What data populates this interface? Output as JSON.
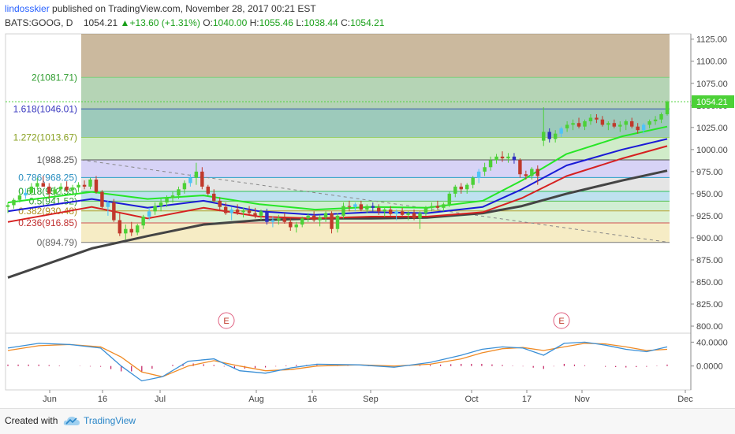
{
  "header": {
    "user": "lindosskier",
    "published_text": "published on TradingView.com, November 28, 2017 00:21 EST",
    "symbol": "BATS:GOOG, D",
    "last": "1054.21",
    "change": "+13.60 (+1.31%)",
    "open_label": "O:",
    "open": "1040.00",
    "high_label": "H:",
    "high": "1055.46",
    "low_label": "L:",
    "low": "1038.44",
    "close_label": "C:",
    "close": "1054.21"
  },
  "footer": {
    "created_with": "Created with",
    "brand": "TradingView"
  },
  "colors": {
    "up": "#4cd137",
    "down": "#c0392b",
    "up_alt": "#4fc3f7",
    "down_alt": "#2e2ebf",
    "ema_green": "#26e626",
    "ema_blue": "#1a1ad6",
    "ema_red": "#d62020",
    "sma_black": "#444444",
    "macd": "#3a8fd6",
    "signal": "#f08a24",
    "histogram": "#c2185b"
  },
  "chart_data": [
    {
      "type": "candlestick",
      "y_axis": {
        "ylim": [
          792,
          1131
        ],
        "ticks": [
          "800.00",
          "825.00",
          "850.00",
          "875.00",
          "900.00",
          "925.00",
          "950.00",
          "975.00",
          "1000.00",
          "1025.00",
          "1050.00",
          "1075.00",
          "1100.00",
          "1125.00"
        ],
        "position": "right"
      },
      "x_axis": {
        "tick_labels": [
          "Jun",
          "16",
          "Jul",
          "Aug",
          "16",
          "Sep",
          "Oct",
          "17",
          "Nov",
          "Dec"
        ]
      },
      "last_price_label": "1054.21",
      "fibonacci": [
        {
          "label": "2(1081.71)",
          "level": 1081.71
        },
        {
          "label": "1.618(1046.01)",
          "level": 1046.01
        },
        {
          "label": "1.272(1013.67)",
          "level": 1013.67
        },
        {
          "label": "1(988.25)",
          "level": 988.25
        },
        {
          "label": "0.786(968.25)",
          "level": 968.25
        },
        {
          "label": "0.618(952.55)",
          "level": 952.55
        },
        {
          "label": "0.5(941.52)",
          "level": 941.52
        },
        {
          "label": "0.382(930.48)",
          "level": 930.48
        },
        {
          "label": "0.236(916.85)",
          "level": 916.85
        },
        {
          "label": "0(894.79)",
          "level": 894.79
        }
      ],
      "earnings_markers": [
        "E",
        "E"
      ],
      "candles": [
        [
          935,
          940,
          928,
          937
        ],
        [
          937,
          945,
          933,
          943
        ],
        [
          943,
          952,
          940,
          948
        ],
        [
          948,
          956,
          944,
          951
        ],
        [
          951,
          962,
          948,
          958
        ],
        [
          958,
          968,
          955,
          962
        ],
        [
          962,
          970,
          958,
          958
        ],
        [
          958,
          962,
          945,
          950
        ],
        [
          950,
          958,
          944,
          955
        ],
        [
          955,
          962,
          950,
          958
        ],
        [
          958,
          964,
          952,
          954
        ],
        [
          954,
          960,
          948,
          957
        ],
        [
          957,
          963,
          952,
          960
        ],
        [
          960,
          965,
          955,
          958
        ],
        [
          958,
          968,
          955,
          966
        ],
        [
          966,
          970,
          950,
          952
        ],
        [
          952,
          954,
          932,
          935
        ],
        [
          935,
          942,
          925,
          940
        ],
        [
          940,
          944,
          918,
          920
        ],
        [
          920,
          928,
          902,
          905
        ],
        [
          905,
          915,
          898,
          910
        ],
        [
          910,
          918,
          902,
          906
        ],
        [
          906,
          916,
          903,
          914
        ],
        [
          914,
          926,
          910,
          924
        ],
        [
          924,
          934,
          920,
          930
        ],
        [
          930,
          940,
          926,
          936
        ],
        [
          936,
          944,
          930,
          940
        ],
        [
          940,
          948,
          935,
          945
        ],
        [
          945,
          952,
          940,
          948
        ],
        [
          948,
          958,
          944,
          955
        ],
        [
          955,
          965,
          950,
          962
        ],
        [
          962,
          972,
          958,
          968
        ],
        [
          968,
          985,
          960,
          975
        ],
        [
          975,
          980,
          955,
          958
        ],
        [
          958,
          960,
          948,
          950
        ],
        [
          950,
          955,
          940,
          942
        ],
        [
          942,
          946,
          930,
          935
        ],
        [
          935,
          940,
          926,
          928
        ],
        [
          928,
          935,
          920,
          932
        ],
        [
          932,
          938,
          926,
          929
        ],
        [
          929,
          934,
          923,
          931
        ],
        [
          931,
          936,
          926,
          928
        ],
        [
          928,
          934,
          922,
          925
        ],
        [
          925,
          932,
          920,
          930
        ],
        [
          930,
          933,
          915,
          918
        ],
        [
          918,
          924,
          912,
          920
        ],
        [
          920,
          926,
          915,
          922
        ],
        [
          922,
          928,
          916,
          918
        ],
        [
          918,
          922,
          908,
          912
        ],
        [
          912,
          918,
          906,
          915
        ],
        [
          915,
          924,
          912,
          922
        ],
        [
          922,
          928,
          918,
          925
        ],
        [
          925,
          930,
          918,
          920
        ],
        [
          920,
          926,
          913,
          923
        ],
        [
          923,
          930,
          918,
          928
        ],
        [
          928,
          930,
          905,
          910
        ],
        [
          910,
          928,
          906,
          925
        ],
        [
          925,
          940,
          922,
          936
        ],
        [
          936,
          942,
          930,
          935
        ],
        [
          935,
          940,
          930,
          938
        ],
        [
          938,
          942,
          930,
          932
        ],
        [
          932,
          938,
          928,
          936
        ],
        [
          936,
          940,
          930,
          934
        ],
        [
          934,
          938,
          926,
          930
        ],
        [
          930,
          935,
          924,
          932
        ],
        [
          932,
          936,
          925,
          927
        ],
        [
          927,
          932,
          920,
          930
        ],
        [
          930,
          934,
          924,
          926
        ],
        [
          926,
          930,
          920,
          928
        ],
        [
          928,
          932,
          920,
          922
        ],
        [
          922,
          930,
          910,
          928
        ],
        [
          928,
          936,
          925,
          934
        ],
        [
          934,
          940,
          930,
          936
        ],
        [
          936,
          942,
          932,
          934
        ],
        [
          934,
          940,
          930,
          938
        ],
        [
          938,
          952,
          935,
          950
        ],
        [
          950,
          960,
          946,
          958
        ],
        [
          958,
          962,
          950,
          955
        ],
        [
          955,
          962,
          950,
          960
        ],
        [
          960,
          970,
          956,
          968
        ],
        [
          968,
          978,
          962,
          975
        ],
        [
          975,
          985,
          970,
          980
        ],
        [
          980,
          992,
          976,
          988
        ],
        [
          988,
          995,
          984,
          992
        ],
        [
          992,
          998,
          986,
          990
        ],
        [
          990,
          996,
          985,
          992
        ],
        [
          992,
          996,
          984,
          988
        ],
        [
          988,
          990,
          968,
          972
        ],
        [
          972,
          976,
          966,
          970
        ],
        [
          970,
          980,
          966,
          978
        ],
        [
          978,
          982,
          960,
          970
        ],
        [
          1010,
          1048,
          1004,
          1020
        ],
        [
          1020,
          1024,
          1008,
          1012
        ],
        [
          1012,
          1022,
          1008,
          1018
        ],
        [
          1018,
          1026,
          1014,
          1024
        ],
        [
          1024,
          1032,
          1020,
          1028
        ],
        [
          1028,
          1034,
          1022,
          1030
        ],
        [
          1030,
          1036,
          1024,
          1026
        ],
        [
          1026,
          1034,
          1022,
          1032
        ],
        [
          1032,
          1040,
          1028,
          1036
        ],
        [
          1036,
          1040,
          1030,
          1034
        ],
        [
          1034,
          1038,
          1026,
          1028
        ],
        [
          1028,
          1032,
          1022,
          1030
        ],
        [
          1030,
          1034,
          1024,
          1026
        ],
        [
          1026,
          1032,
          1020,
          1028
        ],
        [
          1028,
          1034,
          1022,
          1032
        ],
        [
          1032,
          1036,
          1024,
          1026
        ],
        [
          1026,
          1030,
          1018,
          1022
        ],
        [
          1022,
          1030,
          1018,
          1028
        ],
        [
          1028,
          1034,
          1024,
          1032
        ],
        [
          1032,
          1038,
          1028,
          1034
        ],
        [
          1034,
          1042,
          1030,
          1040
        ],
        [
          1040,
          1055.46,
          1038.44,
          1054.21
        ]
      ],
      "ema_green": [
        [
          0,
          940
        ],
        [
          15,
          952
        ],
        [
          25,
          944
        ],
        [
          35,
          948
        ],
        [
          45,
          938
        ],
        [
          55,
          932
        ],
        [
          65,
          935
        ],
        [
          75,
          934
        ],
        [
          85,
          942
        ],
        [
          92,
          965
        ],
        [
          100,
          995
        ],
        [
          110,
          1015
        ],
        [
          118,
          1026
        ]
      ],
      "ema_blue": [
        [
          0,
          930
        ],
        [
          15,
          944
        ],
        [
          25,
          934
        ],
        [
          35,
          942
        ],
        [
          45,
          930
        ],
        [
          55,
          926
        ],
        [
          65,
          929
        ],
        [
          75,
          928
        ],
        [
          85,
          935
        ],
        [
          92,
          955
        ],
        [
          100,
          982
        ],
        [
          110,
          1000
        ],
        [
          118,
          1012
        ]
      ],
      "ema_red": [
        [
          0,
          918
        ],
        [
          15,
          935
        ],
        [
          25,
          922
        ],
        [
          35,
          934
        ],
        [
          45,
          924
        ],
        [
          55,
          922
        ],
        [
          65,
          924
        ],
        [
          75,
          924
        ],
        [
          85,
          929
        ],
        [
          92,
          945
        ],
        [
          100,
          970
        ],
        [
          110,
          990
        ],
        [
          118,
          1004
        ]
      ],
      "sma_black": [
        [
          0,
          855
        ],
        [
          15,
          888
        ],
        [
          25,
          902
        ],
        [
          35,
          915
        ],
        [
          45,
          920
        ],
        [
          55,
          922
        ],
        [
          65,
          922
        ],
        [
          75,
          923
        ],
        [
          85,
          928
        ],
        [
          92,
          936
        ],
        [
          100,
          950
        ],
        [
          110,
          965
        ],
        [
          118,
          976
        ]
      ]
    },
    {
      "type": "macd",
      "y_axis": {
        "ylim": [
          -40,
          55
        ],
        "ticks": [
          "40.0000",
          "0.0000"
        ],
        "position": "right"
      },
      "macd": [
        [
          0,
          30
        ],
        [
          6,
          38
        ],
        [
          12,
          36
        ],
        [
          18,
          30
        ],
        [
          22,
          0
        ],
        [
          26,
          -25
        ],
        [
          30,
          -18
        ],
        [
          35,
          8
        ],
        [
          40,
          12
        ],
        [
          45,
          -8
        ],
        [
          50,
          -12
        ],
        [
          55,
          -3
        ],
        [
          60,
          3
        ],
        [
          68,
          2
        ],
        [
          75,
          -2
        ],
        [
          82,
          6
        ],
        [
          88,
          18
        ],
        [
          92,
          28
        ],
        [
          96,
          32
        ],
        [
          100,
          30
        ],
        [
          104,
          18
        ],
        [
          108,
          38
        ],
        [
          112,
          40
        ],
        [
          116,
          35
        ],
        [
          120,
          28
        ],
        [
          124,
          24
        ],
        [
          128,
          32
        ]
      ],
      "signal": [
        [
          0,
          26
        ],
        [
          6,
          34
        ],
        [
          12,
          36
        ],
        [
          18,
          32
        ],
        [
          22,
          15
        ],
        [
          26,
          -10
        ],
        [
          30,
          -18
        ],
        [
          35,
          0
        ],
        [
          40,
          9
        ],
        [
          45,
          0
        ],
        [
          50,
          -8
        ],
        [
          55,
          -6
        ],
        [
          60,
          0
        ],
        [
          68,
          2
        ],
        [
          75,
          0
        ],
        [
          82,
          3
        ],
        [
          88,
          12
        ],
        [
          92,
          22
        ],
        [
          96,
          29
        ],
        [
          100,
          31
        ],
        [
          104,
          26
        ],
        [
          108,
          32
        ],
        [
          112,
          38
        ],
        [
          116,
          37
        ],
        [
          120,
          32
        ],
        [
          124,
          26
        ],
        [
          128,
          28
        ]
      ]
    }
  ]
}
